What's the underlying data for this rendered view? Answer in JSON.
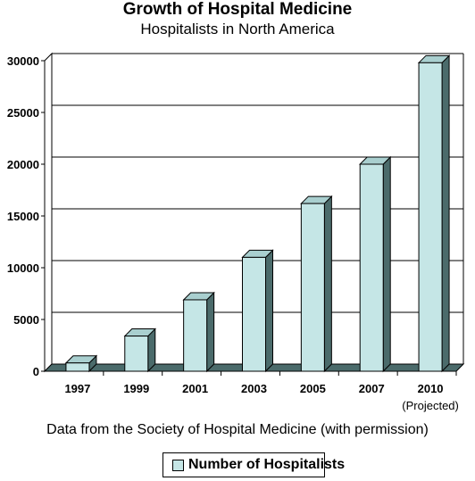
{
  "chart_data": {
    "type": "bar",
    "title": "Growth of Hospital Medicine",
    "subtitle": "Hospitalists in North America",
    "categories": [
      "1997",
      "1999",
      "2001",
      "2003",
      "2005",
      "2007",
      "2010"
    ],
    "category_notes": [
      "",
      "",
      "",
      "",
      "",
      "",
      "(Projected)"
    ],
    "series": [
      {
        "name": "Number of Hospitalists",
        "values": [
          800,
          3400,
          6900,
          11000,
          16200,
          20000,
          29800
        ]
      }
    ],
    "ylim": [
      0,
      30000
    ],
    "yticks": [
      0,
      5000,
      10000,
      15000,
      20000,
      25000,
      30000
    ],
    "grid": true,
    "style": "3d",
    "legend_position": "bottom",
    "colors": {
      "bar_front": "#c5e6e6",
      "bar_side": "#4b6b6b",
      "bar_top": "#a9cfcf",
      "outline": "#000000"
    }
  },
  "caption": "Data from the Society of Hospital Medicine (with permission)"
}
